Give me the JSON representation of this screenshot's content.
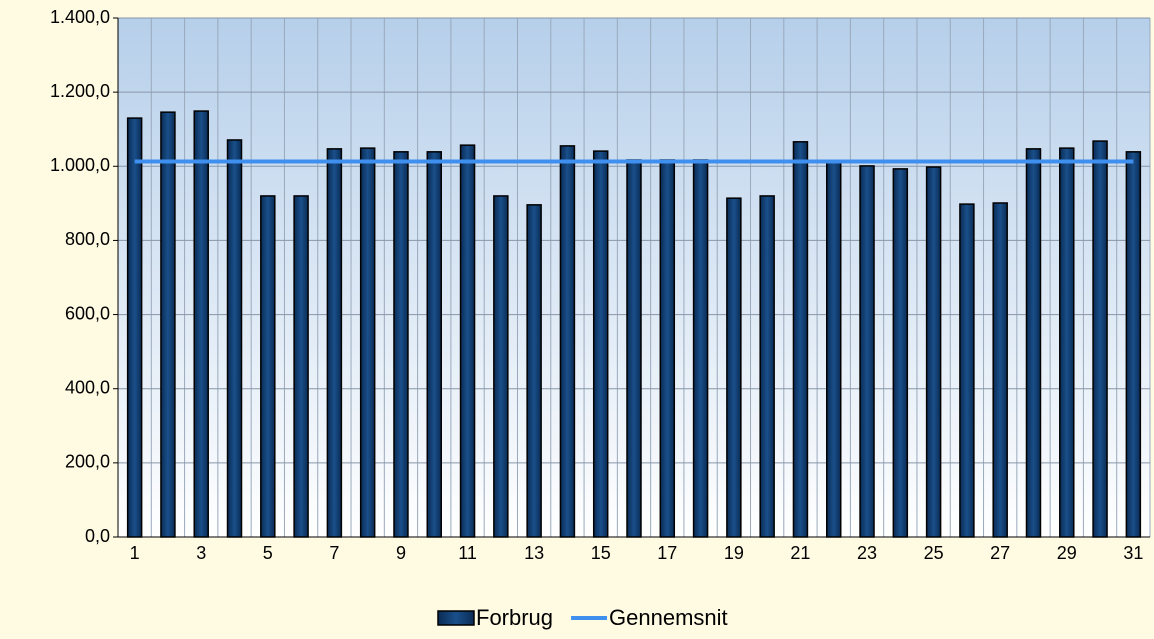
{
  "chart_data": {
    "type": "bar_line",
    "categories": [
      "1",
      null,
      "3",
      null,
      "5",
      null,
      "7",
      null,
      "9",
      null,
      "11",
      null,
      "13",
      null,
      "15",
      null,
      "17",
      null,
      "19",
      null,
      "21",
      null,
      "23",
      null,
      "25",
      null,
      "27",
      null,
      "29",
      null,
      "31"
    ],
    "series": [
      {
        "name": "Forbrug",
        "type": "bar",
        "color": "#0b3566",
        "values": [
          1130,
          1146,
          1149,
          1071,
          920,
          920,
          1047,
          1049,
          1039,
          1039,
          1057,
          920,
          896,
          1055,
          1041,
          1017,
          1017,
          1017,
          914,
          920,
          1066,
          1014,
          1001,
          993,
          998,
          898,
          901,
          1047,
          1049,
          1068,
          1039
        ]
      },
      {
        "name": "Gennemsnit",
        "type": "line",
        "color": "#3f8fef",
        "values": [
          1013,
          1013,
          1013,
          1013,
          1013,
          1013,
          1013,
          1013,
          1013,
          1013,
          1013,
          1013,
          1013,
          1013,
          1013,
          1013,
          1013,
          1013,
          1013,
          1013,
          1013,
          1013,
          1013,
          1013,
          1013,
          1013,
          1013,
          1013,
          1013,
          1013,
          1013
        ]
      }
    ],
    "ylim": [
      0,
      1400
    ],
    "yticks": [
      {
        "value": 0,
        "label": "0,0"
      },
      {
        "value": 200,
        "label": "200,0"
      },
      {
        "value": 400,
        "label": "400,0"
      },
      {
        "value": 600,
        "label": "600,0"
      },
      {
        "value": 800,
        "label": "800,0"
      },
      {
        "value": 1000,
        "label": "1.000,0"
      },
      {
        "value": 1200,
        "label": "1.200,0"
      },
      {
        "value": 1400,
        "label": "1.400,0"
      }
    ],
    "grid": true,
    "legend": "bottom"
  }
}
